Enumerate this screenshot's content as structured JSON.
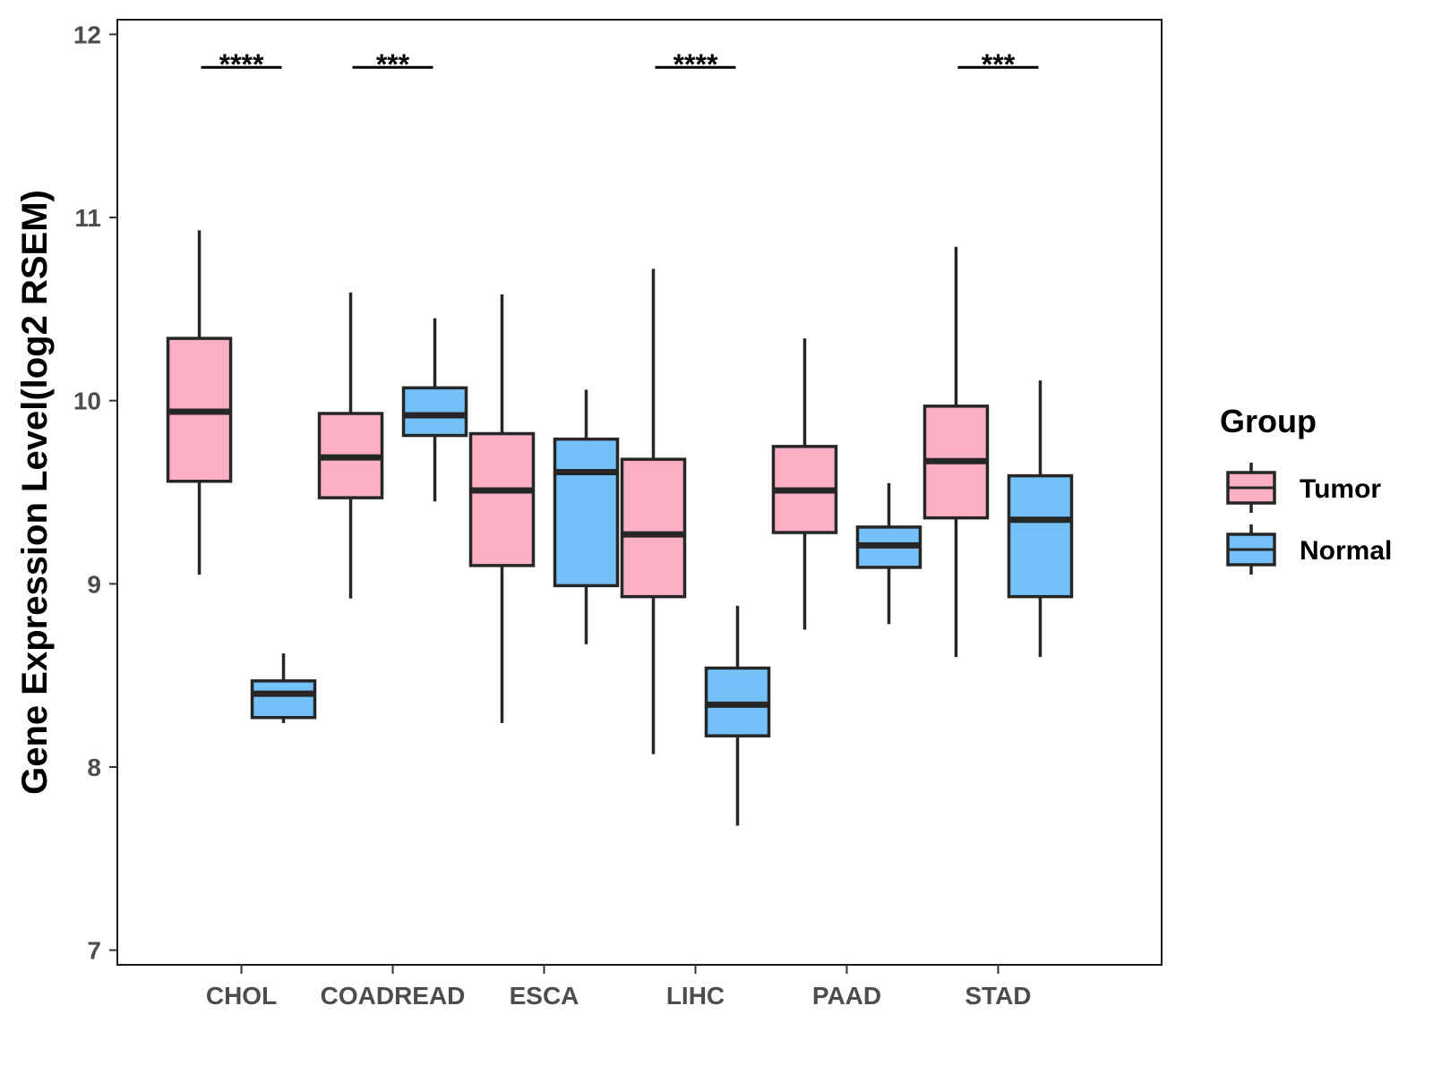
{
  "chart_data": {
    "type": "boxplot",
    "title": "",
    "xlabel": "",
    "ylabel": "Gene Expression Level(log2 RSEM)",
    "ylim": [
      6.92,
      12.08
    ],
    "yticks": [
      7,
      8,
      9,
      10,
      11,
      12
    ],
    "ytick_labels": [
      "7",
      "8",
      "9",
      "10",
      "11",
      "12"
    ],
    "categories": [
      "CHOL",
      "COADREAD",
      "ESCA",
      "LIHC",
      "PAAD",
      "STAD"
    ],
    "legend": {
      "title": "Group",
      "position": "right",
      "entries": [
        {
          "name": "Tumor",
          "color": "#FAB0C2"
        },
        {
          "name": "Normal",
          "color": "#74C0F8"
        }
      ]
    },
    "series": [
      {
        "name": "Tumor",
        "color": "#FAB0C2",
        "boxes": [
          {
            "category": "CHOL",
            "min": 9.05,
            "q1": 9.56,
            "median": 9.94,
            "q3": 10.34,
            "max": 10.93
          },
          {
            "category": "COADREAD",
            "min": 8.92,
            "q1": 9.47,
            "median": 9.69,
            "q3": 9.93,
            "max": 10.59
          },
          {
            "category": "ESCA",
            "min": 8.24,
            "q1": 9.1,
            "median": 9.51,
            "q3": 9.82,
            "max": 10.58
          },
          {
            "category": "LIHC",
            "min": 8.07,
            "q1": 8.93,
            "median": 9.27,
            "q3": 9.68,
            "max": 10.72
          },
          {
            "category": "PAAD",
            "min": 8.75,
            "q1": 9.28,
            "median": 9.51,
            "q3": 9.75,
            "max": 10.34
          },
          {
            "category": "STAD",
            "min": 8.6,
            "q1": 9.36,
            "median": 9.67,
            "q3": 9.97,
            "max": 10.84
          }
        ]
      },
      {
        "name": "Normal",
        "color": "#74C0F8",
        "boxes": [
          {
            "category": "CHOL",
            "min": 8.24,
            "q1": 8.27,
            "median": 8.4,
            "q3": 8.47,
            "max": 8.62
          },
          {
            "category": "COADREAD",
            "min": 9.45,
            "q1": 9.81,
            "median": 9.92,
            "q3": 10.07,
            "max": 10.45
          },
          {
            "category": "ESCA",
            "min": 8.67,
            "q1": 8.99,
            "median": 9.61,
            "q3": 9.79,
            "max": 10.06
          },
          {
            "category": "LIHC",
            "min": 7.68,
            "q1": 8.17,
            "median": 8.34,
            "q3": 8.54,
            "max": 8.88
          },
          {
            "category": "PAAD",
            "min": 8.78,
            "q1": 9.09,
            "median": 9.21,
            "q3": 9.31,
            "max": 9.55
          },
          {
            "category": "STAD",
            "min": 8.6,
            "q1": 8.93,
            "median": 9.35,
            "q3": 9.59,
            "max": 10.11
          }
        ]
      }
    ],
    "significance": [
      {
        "category": "CHOL",
        "label": "****"
      },
      {
        "category": "COADREAD",
        "label": "***"
      },
      {
        "category": "ESCA",
        "label": ""
      },
      {
        "category": "LIHC",
        "label": "****"
      },
      {
        "category": "PAAD",
        "label": ""
      },
      {
        "category": "STAD",
        "label": "***"
      }
    ],
    "significance_y": 11.82
  }
}
